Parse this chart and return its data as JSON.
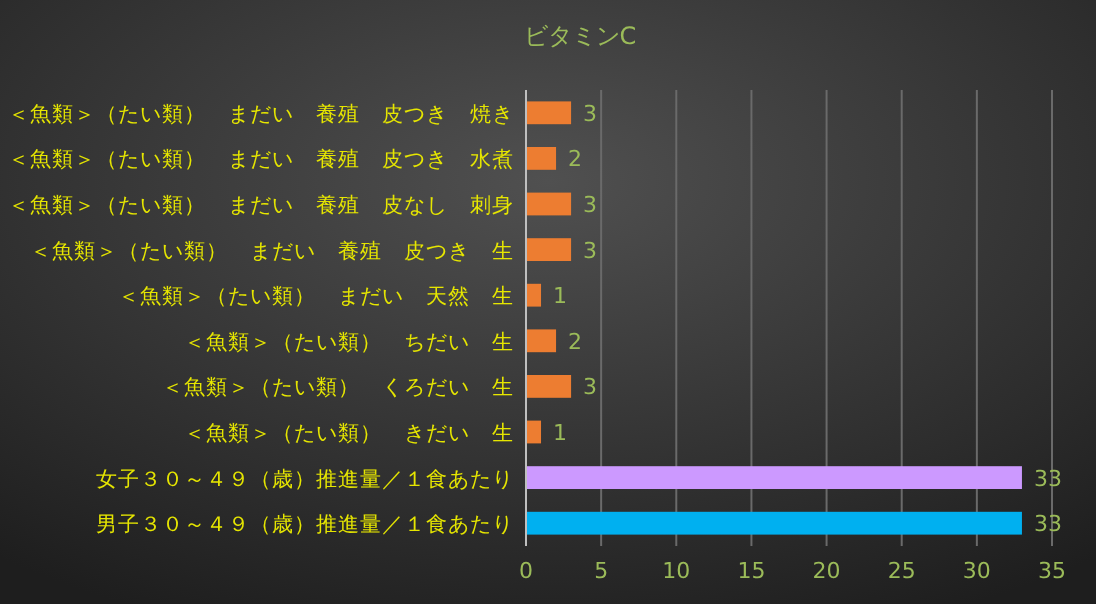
{
  "chart_data": {
    "type": "bar",
    "orientation": "horizontal",
    "title": "ビタミンC",
    "categories": [
      "＜魚類＞（たい類）　まだい　養殖　皮つき　焼き",
      "＜魚類＞（たい類）　まだい　養殖　皮つき　水煮",
      "＜魚類＞（たい類）　まだい　養殖　皮なし　刺身",
      "＜魚類＞（たい類）　まだい　養殖　皮つき　生",
      "＜魚類＞（たい類）　まだい　天然　生",
      "＜魚類＞（たい類）　ちだい　生",
      "＜魚類＞（たい類）　くろだい　生",
      "＜魚類＞（たい類）　きだい　生",
      "女子３０～４９（歳）推進量／１食あたり",
      "男子３０～４９（歳）推進量／１食あたり"
    ],
    "values": [
      3,
      2,
      3,
      3,
      1,
      2,
      3,
      1,
      33,
      33
    ],
    "colors": [
      "#ed7d31",
      "#ed7d31",
      "#ed7d31",
      "#ed7d31",
      "#ed7d31",
      "#ed7d31",
      "#ed7d31",
      "#ed7d31",
      "#cc99ff",
      "#00b0f0"
    ],
    "xlim": [
      0,
      35
    ],
    "xticks": [
      0,
      5,
      10,
      15,
      20,
      25,
      30,
      35
    ],
    "grid": "x",
    "data_labels": true
  }
}
